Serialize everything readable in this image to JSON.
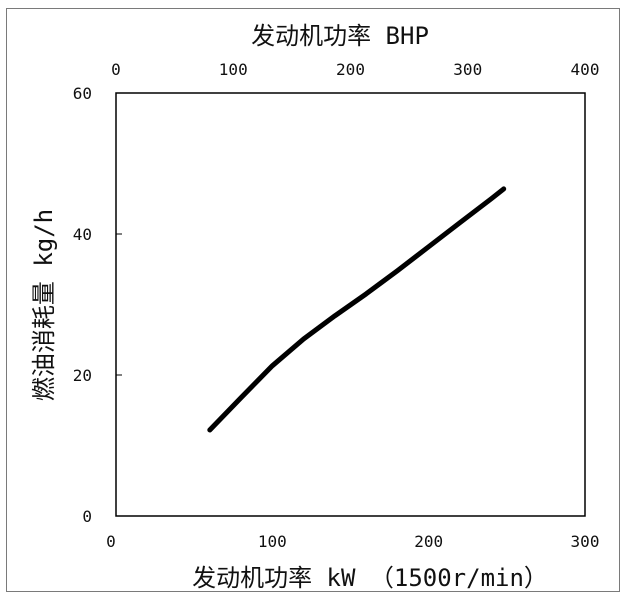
{
  "chart_data": {
    "type": "line",
    "top_axis": {
      "label": "发动机功率 BHP",
      "ticks": [
        0,
        100,
        200,
        300,
        400
      ],
      "range": [
        0,
        400
      ]
    },
    "x_axis": {
      "label": "发动机功率 kW  （1500r/min）",
      "ticks": [
        0,
        100,
        200,
        300
      ],
      "range": [
        0,
        300
      ]
    },
    "y_axis": {
      "label": "燃油消耗量 kg/h",
      "ticks": [
        0,
        20,
        40,
        60
      ],
      "range": [
        0,
        60
      ]
    },
    "series": [
      {
        "color": "#000000",
        "x": [
          60,
          80,
          100,
          120,
          140,
          160,
          180,
          200,
          220,
          240,
          248
        ],
        "y": [
          12.2,
          16.8,
          21.3,
          25.1,
          28.4,
          31.5,
          34.8,
          38.2,
          41.6,
          45.0,
          46.4
        ]
      }
    ],
    "grid": false
  }
}
